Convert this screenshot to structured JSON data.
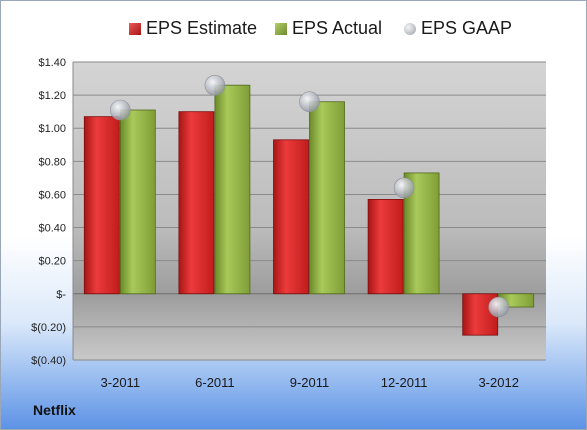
{
  "chart_data": {
    "type": "bar",
    "categories": [
      "3-2011",
      "6-2011",
      "9-2011",
      "12-2011",
      "3-2012"
    ],
    "series": [
      {
        "name": "EPS Estimate",
        "values": [
          1.07,
          1.1,
          0.93,
          0.57,
          -0.25
        ],
        "color": "#cc1f1f"
      },
      {
        "name": "EPS Actual",
        "values": [
          1.11,
          1.26,
          1.16,
          0.73,
          -0.08
        ],
        "color": "#8caa3f"
      },
      {
        "name": "EPS GAAP",
        "values": [
          1.11,
          1.26,
          1.16,
          0.64,
          -0.08
        ],
        "color": "#b4b8c0"
      }
    ],
    "ylim": [
      -0.4,
      1.4
    ],
    "yticks": [
      1.4,
      1.2,
      1.0,
      0.8,
      0.6,
      0.4,
      0.2,
      0.0,
      -0.2,
      -0.4
    ],
    "ytick_labels": [
      "$1.40",
      "$1.20",
      "$1.00",
      "$0.80",
      "$0.60",
      "$0.40",
      "$0.20",
      "$-",
      "$(0.20)",
      "$(0.40)"
    ],
    "grid": true,
    "legend_position": "top"
  },
  "company": "Netflix"
}
